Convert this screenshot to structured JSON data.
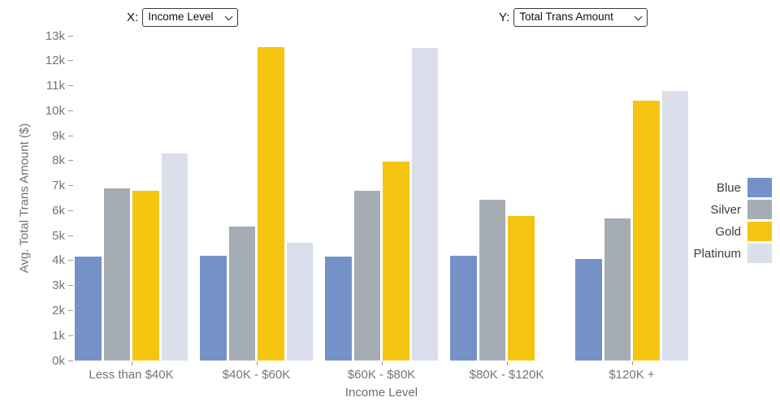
{
  "controls": {
    "x_label": "X:",
    "x_select_value": "Income Level",
    "y_label": "Y:",
    "y_select_value": "Total Trans Amount"
  },
  "chart_data": {
    "type": "bar",
    "title": "",
    "xlabel": "Income Level",
    "ylabel": "Avg. Total Trans Amount ($)",
    "categories": [
      "Less than $40K",
      "$40K - $60K",
      "$60K - $80K",
      "$80K - $120K",
      "$120K +"
    ],
    "series": [
      {
        "name": "Blue",
        "color": "#7492c8",
        "values": [
          4.15,
          4.2,
          4.15,
          4.2,
          4.05
        ]
      },
      {
        "name": "Silver",
        "color": "#a6acb3",
        "values": [
          6.9,
          5.35,
          6.8,
          6.45,
          5.7
        ]
      },
      {
        "name": "Gold",
        "color": "#f5c512",
        "values": [
          6.8,
          12.55,
          7.95,
          5.8,
          10.4
        ]
      },
      {
        "name": "Platinum",
        "color": "#dadfeb",
        "values": [
          8.3,
          4.7,
          12.5,
          null,
          10.8
        ]
      }
    ],
    "ylim": [
      0,
      13
    ],
    "ytick_labels": [
      "0k",
      "1k",
      "2k",
      "3k",
      "4k",
      "5k",
      "6k",
      "7k",
      "8k",
      "9k",
      "10k",
      "11k",
      "12k",
      "13k"
    ],
    "grid": false,
    "legend_position": "right",
    "legend_entries": [
      "Blue",
      "Silver",
      "Gold",
      "Platinum"
    ]
  }
}
